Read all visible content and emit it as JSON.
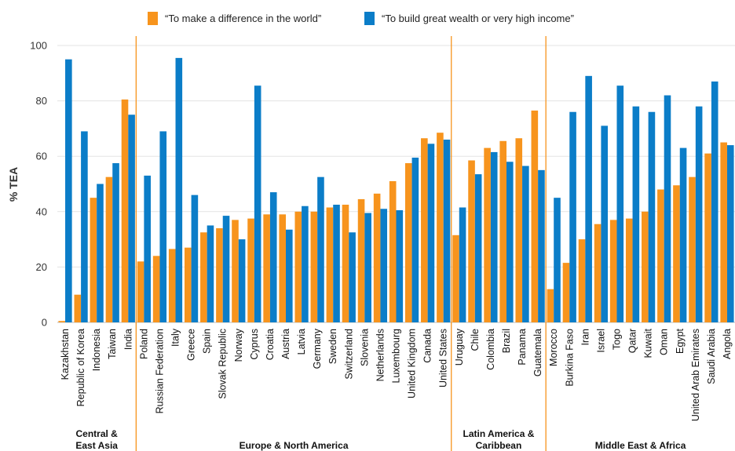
{
  "chart_data": {
    "type": "bar",
    "ylabel": "% TEA",
    "ylim": [
      0,
      100
    ],
    "yticks": [
      0,
      20,
      40,
      60,
      80,
      100
    ],
    "grid": true,
    "legend_placement": "top-center",
    "colors": {
      "difference": "#f7941d",
      "wealth": "#0b7dc8",
      "divider": "#f7941d"
    },
    "categories": [
      "Kazakhstan",
      "Republic of Korea",
      "Indonesia",
      "Taiwan",
      "India",
      "Poland",
      "Russian Federation",
      "Italy",
      "Greece",
      "Spain",
      "Slovak Republic",
      "Norway",
      "Cyprus",
      "Croatia",
      "Austria",
      "Latvia",
      "Germany",
      "Sweden",
      "Switzerland",
      "Slovenia",
      "Netherlands",
      "Luxembourg",
      "United Kingdom",
      "Canada",
      "United States",
      "Uruguay",
      "Chile",
      "Colombia",
      "Brazil",
      "Panama",
      "Guatemala",
      "Morocco",
      "Burkina Faso",
      "Iran",
      "Israel",
      "Togo",
      "Qatar",
      "Kuwait",
      "Oman",
      "Egypt",
      "United Arab Emirates",
      "Saudi Arabia",
      "Angola"
    ],
    "series": [
      {
        "name": "“To make a difference in the world”",
        "key": "difference",
        "values": [
          0.5,
          10,
          45,
          52.5,
          80.5,
          22,
          24,
          26.5,
          27,
          32.5,
          34,
          37,
          37.5,
          39,
          39,
          40,
          40,
          41.5,
          42.5,
          44.5,
          46.5,
          51,
          57.5,
          66.5,
          68.5,
          31.5,
          58.5,
          63,
          65.5,
          66.5,
          76.5,
          12,
          21.5,
          30,
          35.5,
          37,
          37.5,
          40,
          48,
          49.5,
          52.5,
          61,
          65
        ]
      },
      {
        "name": "“To build great wealth or very high income”",
        "key": "wealth",
        "values": [
          95,
          69,
          50,
          57.5,
          75,
          53,
          69,
          95.5,
          46,
          35,
          38.5,
          30,
          85.5,
          47,
          33.5,
          42,
          52.5,
          42.5,
          32.5,
          39.5,
          41,
          40.5,
          59.5,
          64.5,
          66,
          41.5,
          53.5,
          61.5,
          58,
          56.5,
          55,
          45,
          76,
          89,
          71,
          85.5,
          78,
          76,
          82,
          63,
          78,
          87,
          64
        ]
      }
    ],
    "groups": [
      {
        "label": "Central & East Asia",
        "start": 0,
        "end": 4
      },
      {
        "label": "Europe & North America",
        "start": 5,
        "end": 24
      },
      {
        "label": "Latin America & Caribbean",
        "start": 25,
        "end": 30
      },
      {
        "label": "Middle East & Africa",
        "start": 31,
        "end": 42
      }
    ]
  }
}
